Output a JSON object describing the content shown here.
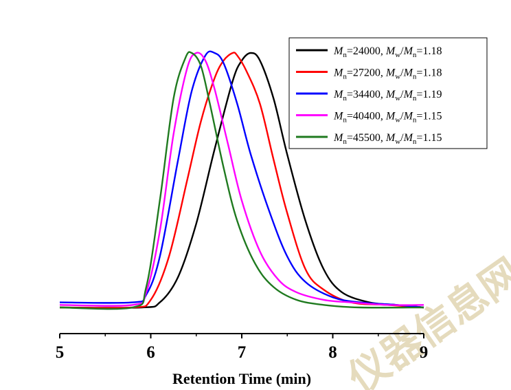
{
  "chart_data": {
    "type": "line",
    "title": "",
    "xlabel": "Retention Time (min)",
    "ylabel": "",
    "xlim": [
      5,
      9
    ],
    "ylim": [
      0,
      1
    ],
    "xticks": [
      "5",
      "6",
      "7",
      "8",
      "9"
    ],
    "grid": false,
    "legend_placement": "top-right",
    "series": [
      {
        "name": "Mn=24000, Mw/Mn=1.18",
        "legend": {
          "mn_sub": "n",
          "mn_val": "=24000, ",
          "mw_sub": "w",
          "ratio_sub": "n",
          "ratio_val": "=1.18"
        },
        "color": "#000000",
        "x": [
          5.0,
          5.9,
          6.1,
          6.3,
          6.5,
          6.7,
          6.9,
          7.0,
          7.1,
          7.2,
          7.35,
          7.5,
          7.7,
          7.9,
          8.1,
          8.4,
          8.7,
          9.0
        ],
        "y": [
          0.0,
          0.0,
          0.02,
          0.12,
          0.33,
          0.62,
          0.89,
          0.97,
          1.0,
          0.97,
          0.82,
          0.6,
          0.34,
          0.15,
          0.06,
          0.02,
          0.01,
          0.0
        ]
      },
      {
        "name": "Mn=27200, Mw/Mn=1.18",
        "legend": {
          "mn_sub": "n",
          "mn_val": "=27200, ",
          "mw_sub": "w",
          "ratio_sub": "n",
          "ratio_val": "=1.18"
        },
        "color": "#ff0000",
        "x": [
          5.0,
          5.8,
          6.0,
          6.2,
          6.4,
          6.55,
          6.7,
          6.8,
          6.9,
          6.95,
          7.05,
          7.2,
          7.35,
          7.5,
          7.7,
          7.9,
          8.2,
          8.6,
          9.0
        ],
        "y": [
          0.0,
          0.0,
          0.03,
          0.2,
          0.5,
          0.73,
          0.9,
          0.97,
          1.0,
          0.99,
          0.93,
          0.8,
          0.58,
          0.37,
          0.15,
          0.07,
          0.02,
          0.01,
          0.0
        ]
      },
      {
        "name": "Mn=34400, Mw/Mn=1.19",
        "legend": {
          "mn_sub": "n",
          "mn_val": "=34400, ",
          "mw_sub": "w",
          "ratio_sub": "n",
          "ratio_val": "=1.19"
        },
        "color": "#0000ff",
        "x": [
          5.0,
          5.8,
          5.95,
          6.1,
          6.3,
          6.45,
          6.6,
          6.7,
          6.8,
          6.95,
          7.1,
          7.3,
          7.5,
          7.7,
          8.0,
          8.3,
          8.7,
          9.0
        ],
        "y": [
          0.02,
          0.02,
          0.05,
          0.2,
          0.58,
          0.85,
          0.99,
          1.0,
          0.96,
          0.8,
          0.6,
          0.38,
          0.2,
          0.1,
          0.04,
          0.02,
          0.01,
          0.0
        ]
      },
      {
        "name": "Mn=40400, Mw/Mn=1.15",
        "legend": {
          "mn_sub": "n",
          "mn_val": "=40400, ",
          "mw_sub": "w",
          "ratio_sub": "n",
          "ratio_val": "=1.15"
        },
        "color": "#ff00ff",
        "x": [
          5.0,
          5.8,
          5.95,
          6.1,
          6.25,
          6.4,
          6.5,
          6.6,
          6.7,
          6.85,
          7.0,
          7.2,
          7.4,
          7.6,
          7.9,
          8.2,
          8.6,
          9.0
        ],
        "y": [
          0.01,
          0.01,
          0.06,
          0.3,
          0.68,
          0.94,
          1.0,
          0.97,
          0.86,
          0.64,
          0.42,
          0.22,
          0.11,
          0.06,
          0.03,
          0.02,
          0.01,
          0.01
        ]
      },
      {
        "name": "Mn=45500, Mw/Mn=1.15",
        "legend": {
          "mn_sub": "n",
          "mn_val": "=45500, ",
          "mw_sub": "w",
          "ratio_sub": "n",
          "ratio_val": "=1.15"
        },
        "color": "#1f7a1f",
        "x": [
          5.0,
          5.8,
          5.95,
          6.1,
          6.25,
          6.38,
          6.45,
          6.55,
          6.65,
          6.8,
          6.95,
          7.15,
          7.35,
          7.6,
          7.9,
          8.3,
          9.0
        ],
        "y": [
          0.0,
          0.0,
          0.08,
          0.42,
          0.82,
          0.98,
          1.0,
          0.95,
          0.8,
          0.55,
          0.34,
          0.17,
          0.08,
          0.03,
          0.01,
          0.0,
          0.0
        ]
      }
    ]
  },
  "legend_italic": {
    "mn": "M",
    "mw": "M",
    "slash": "/"
  },
  "watermark": {
    "text": "仪器信息网",
    "color": "#d8c89a"
  }
}
